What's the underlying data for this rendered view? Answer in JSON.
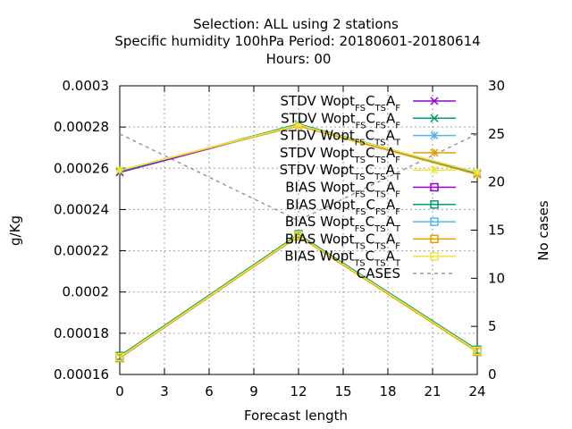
{
  "chart_data": {
    "type": "line",
    "title_lines": [
      "Selection: ALL using     2 stations",
      "Specific humidity 100hPa   Period: 20180601-20180614",
      "Hours:  00"
    ],
    "xlabel": "Forecast length",
    "ylabel": "g/Kg",
    "y2label": "No cases",
    "x": [
      0,
      12,
      24
    ],
    "xticks": [
      "0",
      "3",
      "6",
      "9",
      "12",
      "15",
      "18",
      "21",
      "24"
    ],
    "xlim": [
      0,
      24
    ],
    "ylim": [
      0.00016,
      0.0003
    ],
    "yticks": [
      "0.00016",
      "0.00018",
      "0.0002",
      "0.00022",
      "0.00024",
      "0.00026",
      "0.00028",
      "0.0003"
    ],
    "y2lim": [
      0,
      30
    ],
    "y2ticks": [
      "0",
      "5",
      "10",
      "15",
      "20",
      "25",
      "30"
    ],
    "grid": true,
    "legend_position": "top-right",
    "series": [
      {
        "label": [
          [
            "STDV Wopt",
            ""
          ],
          [
            "FS",
            "sub"
          ],
          [
            "C",
            ""
          ],
          [
            "TS",
            "sub"
          ],
          [
            "A",
            ""
          ],
          [
            "F",
            "sub"
          ]
        ],
        "color": "#9400d3",
        "marker": "x",
        "values": [
          0.000258,
          0.000281,
          0.000257
        ]
      },
      {
        "label": [
          [
            "STDV Wopt",
            ""
          ],
          [
            "FS",
            "sub"
          ],
          [
            "C",
            ""
          ],
          [
            "FS",
            "sub"
          ],
          [
            "A",
            ""
          ],
          [
            "F",
            "sub"
          ]
        ],
        "color": "#009e73",
        "marker": "x",
        "values": [
          0.0002585,
          0.0002815,
          0.0002575
        ]
      },
      {
        "label": [
          [
            "STDV Wopt",
            ""
          ],
          [
            "FS",
            "sub"
          ],
          [
            "C",
            ""
          ],
          [
            "TS",
            "sub"
          ],
          [
            "A",
            ""
          ],
          [
            "T",
            "sub"
          ]
        ],
        "color": "#56b4e9",
        "marker": "star",
        "values": [
          0.000259,
          0.000281,
          0.000258
        ]
      },
      {
        "label": [
          [
            "STDV Wopt",
            ""
          ],
          [
            "TS",
            "sub"
          ],
          [
            "C",
            ""
          ],
          [
            "TS",
            "sub"
          ],
          [
            "A",
            ""
          ],
          [
            "F",
            "sub"
          ]
        ],
        "color": "#e69f00",
        "marker": "star",
        "values": [
          0.000259,
          0.0002805,
          0.000257
        ]
      },
      {
        "label": [
          [
            "STDV Wopt",
            ""
          ],
          [
            "TS",
            "sub"
          ],
          [
            "C",
            ""
          ],
          [
            "TS",
            "sub"
          ],
          [
            "A",
            ""
          ],
          [
            "T",
            "sub"
          ]
        ],
        "color": "#f0e442",
        "marker": "star",
        "values": [
          0.000259,
          0.000281,
          0.000258
        ]
      },
      {
        "label": [
          [
            "BIAS Wopt",
            ""
          ],
          [
            "FS",
            "sub"
          ],
          [
            "C",
            ""
          ],
          [
            "TS",
            "sub"
          ],
          [
            "A",
            ""
          ],
          [
            "F",
            "sub"
          ]
        ],
        "color": "#9400d3",
        "marker": "square",
        "values": [
          0.000168,
          0.0002275,
          0.0001715
        ]
      },
      {
        "label": [
          [
            "BIAS Wopt",
            ""
          ],
          [
            "FS",
            "sub"
          ],
          [
            "C",
            ""
          ],
          [
            "FS",
            "sub"
          ],
          [
            "A",
            ""
          ],
          [
            "F",
            "sub"
          ]
        ],
        "color": "#009e73",
        "marker": "square",
        "values": [
          0.000169,
          0.000228,
          0.000172
        ]
      },
      {
        "label": [
          [
            "BIAS Wopt",
            ""
          ],
          [
            "FS",
            "sub"
          ],
          [
            "C",
            ""
          ],
          [
            "TS",
            "sub"
          ],
          [
            "A",
            ""
          ],
          [
            "T",
            "sub"
          ]
        ],
        "color": "#56b4e9",
        "marker": "square",
        "values": [
          0.000168,
          0.0002275,
          0.000171
        ]
      },
      {
        "label": [
          [
            "BIAS Wopt",
            ""
          ],
          [
            "TS",
            "sub"
          ],
          [
            "C",
            ""
          ],
          [
            "TS",
            "sub"
          ],
          [
            "A",
            ""
          ],
          [
            "F",
            "sub"
          ]
        ],
        "color": "#e69f00",
        "marker": "square",
        "values": [
          0.000168,
          0.000227,
          0.000171
        ]
      },
      {
        "label": [
          [
            "BIAS Wopt",
            ""
          ],
          [
            "TS",
            "sub"
          ],
          [
            "C",
            ""
          ],
          [
            "TS",
            "sub"
          ],
          [
            "A",
            ""
          ],
          [
            "T",
            "sub"
          ]
        ],
        "color": "#f0e442",
        "marker": "square",
        "values": [
          0.0001685,
          0.0002275,
          0.0001715
        ]
      },
      {
        "label": [
          [
            "CASES",
            ""
          ]
        ],
        "color": "#999999",
        "marker": "none",
        "dashed": true,
        "axis": "y2",
        "values": [
          25,
          16,
          25
        ]
      }
    ]
  }
}
